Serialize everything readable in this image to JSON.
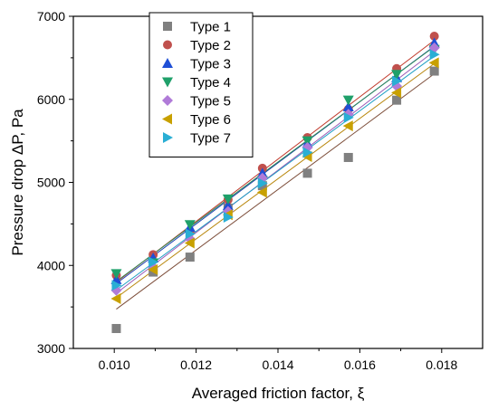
{
  "chart_data": {
    "type": "scatter",
    "title": "",
    "xlabel": "Averaged friction factor, ξ",
    "ylabel": "Pressure drop ΔP, Pa",
    "xlim": [
      0.009,
      0.019
    ],
    "ylim": [
      3000,
      7000
    ],
    "xticks": [
      0.01,
      0.012,
      0.014,
      0.016,
      0.018
    ],
    "xtick_labels": [
      "0.010",
      "0.012",
      "0.014",
      "0.016",
      "0.018"
    ],
    "yticks": [
      3000,
      4000,
      5000,
      6000,
      7000
    ],
    "ytick_labels": [
      "3000",
      "4000",
      "5000",
      "6000",
      "7000"
    ],
    "grid": false,
    "legend_position": "top-left",
    "trendlines": "linear fit per series",
    "x": [
      0.01005,
      0.01095,
      0.01185,
      0.01278,
      0.01362,
      0.01472,
      0.01572,
      0.0169,
      0.01782
    ],
    "series": [
      {
        "name": "Type 1",
        "marker": "square",
        "color": "#808080",
        "line_color": "#7d4e3a",
        "values": [
          3240,
          3920,
          4100,
          4690,
          4960,
          5110,
          5300,
          5990,
          6340
        ]
      },
      {
        "name": "Type 2",
        "marker": "circle",
        "color": "#c0504d",
        "line_color": "#c0392b",
        "values": [
          3880,
          4130,
          4400,
          4790,
          5170,
          5540,
          5880,
          6370,
          6760
        ]
      },
      {
        "name": "Type 3",
        "marker": "triangle-up",
        "color": "#1f4fd6",
        "line_color": "#1a3fb0",
        "values": [
          3830,
          4090,
          4460,
          4720,
          5110,
          5470,
          5910,
          6260,
          6680
        ]
      },
      {
        "name": "Type 4",
        "marker": "triangle-down",
        "color": "#1fa06a",
        "line_color": "#2e8b57",
        "values": [
          3900,
          4030,
          4490,
          4800,
          5020,
          5500,
          5990,
          6300,
          6600
        ]
      },
      {
        "name": "Type 5",
        "marker": "diamond",
        "color": "#b07bd8",
        "line_color": "#9b59b6",
        "values": [
          3700,
          3980,
          4320,
          4650,
          5050,
          5420,
          5820,
          6160,
          6620
        ]
      },
      {
        "name": "Type 6",
        "marker": "triangle-left",
        "color": "#c8a000",
        "line_color": "#b8860b",
        "values": [
          3600,
          3950,
          4270,
          4610,
          4880,
          5310,
          5680,
          6080,
          6440
        ]
      },
      {
        "name": "Type 7",
        "marker": "triangle-right",
        "color": "#2aaed4",
        "line_color": "#1f9fc4",
        "values": [
          3760,
          4040,
          4380,
          4580,
          4990,
          5360,
          5780,
          6220,
          6540
        ]
      }
    ]
  }
}
